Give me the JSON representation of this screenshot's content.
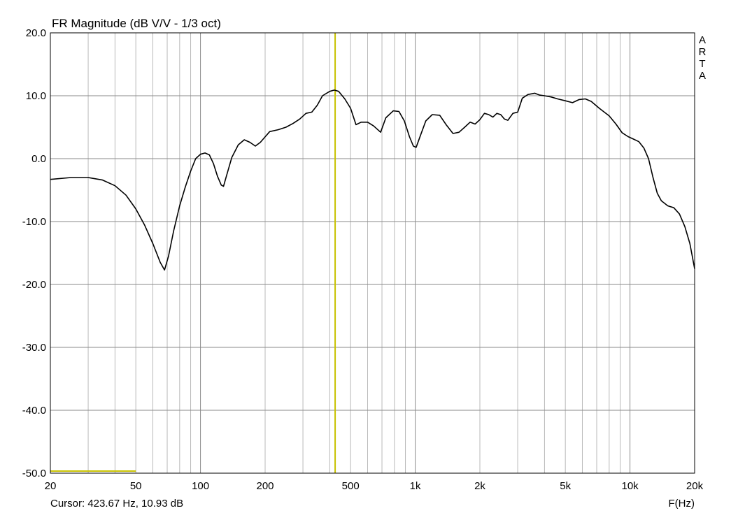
{
  "chart_data": {
    "type": "line",
    "title": "FR Magnitude (dB V/V - 1/3 oct)",
    "xlabel": "F(Hz)",
    "ylabel": "",
    "x_scale": "log",
    "xlim": [
      20,
      20000
    ],
    "ylim": [
      -50,
      20
    ],
    "grid": true,
    "watermark": "ARTA",
    "x_ticks": [
      "20",
      "50",
      "100",
      "200",
      "500",
      "1k",
      "2k",
      "5k",
      "10k",
      "20k"
    ],
    "y_ticks": [
      "20.0",
      "10.0",
      "0.0",
      "-10.0",
      "-20.0",
      "-30.0",
      "-40.0",
      "-50.0"
    ],
    "cursor": {
      "freq_hz": 423.67,
      "level_db": 10.93,
      "label": "Cursor: 423.67 Hz, 10.93 dB"
    },
    "series": [
      {
        "points": [
          [
            20,
            -3.3
          ],
          [
            25,
            -3.0
          ],
          [
            30,
            -3.0
          ],
          [
            35,
            -3.4
          ],
          [
            40,
            -4.3
          ],
          [
            45,
            -5.8
          ],
          [
            50,
            -8.0
          ],
          [
            55,
            -10.6
          ],
          [
            60,
            -13.5
          ],
          [
            65,
            -16.5
          ],
          [
            68,
            -17.7
          ],
          [
            71,
            -15.5
          ],
          [
            75,
            -11.5
          ],
          [
            80,
            -7.5
          ],
          [
            85,
            -4.5
          ],
          [
            90,
            -2.0
          ],
          [
            95,
            0.0
          ],
          [
            100,
            0.7
          ],
          [
            105,
            0.9
          ],
          [
            110,
            0.6
          ],
          [
            115,
            -0.8
          ],
          [
            120,
            -2.8
          ],
          [
            125,
            -4.2
          ],
          [
            128,
            -4.4
          ],
          [
            132,
            -2.8
          ],
          [
            140,
            0.2
          ],
          [
            150,
            2.2
          ],
          [
            160,
            3.0
          ],
          [
            170,
            2.6
          ],
          [
            180,
            2.0
          ],
          [
            190,
            2.6
          ],
          [
            210,
            4.3
          ],
          [
            230,
            4.6
          ],
          [
            250,
            5.0
          ],
          [
            270,
            5.6
          ],
          [
            290,
            6.3
          ],
          [
            310,
            7.2
          ],
          [
            330,
            7.4
          ],
          [
            350,
            8.5
          ],
          [
            370,
            10.0
          ],
          [
            400,
            10.7
          ],
          [
            420,
            10.9
          ],
          [
            440,
            10.7
          ],
          [
            470,
            9.5
          ],
          [
            500,
            8.0
          ],
          [
            530,
            5.4
          ],
          [
            560,
            5.8
          ],
          [
            600,
            5.8
          ],
          [
            640,
            5.2
          ],
          [
            690,
            4.2
          ],
          [
            730,
            6.5
          ],
          [
            790,
            7.6
          ],
          [
            840,
            7.5
          ],
          [
            890,
            6.0
          ],
          [
            940,
            3.5
          ],
          [
            980,
            2.0
          ],
          [
            1010,
            1.8
          ],
          [
            1060,
            3.8
          ],
          [
            1120,
            6.0
          ],
          [
            1200,
            7.0
          ],
          [
            1300,
            6.9
          ],
          [
            1400,
            5.3
          ],
          [
            1500,
            4.0
          ],
          [
            1600,
            4.2
          ],
          [
            1700,
            5.0
          ],
          [
            1800,
            5.8
          ],
          [
            1900,
            5.5
          ],
          [
            2000,
            6.2
          ],
          [
            2100,
            7.2
          ],
          [
            2200,
            7.0
          ],
          [
            2300,
            6.6
          ],
          [
            2400,
            7.2
          ],
          [
            2500,
            7.0
          ],
          [
            2600,
            6.3
          ],
          [
            2700,
            6.1
          ],
          [
            2850,
            7.2
          ],
          [
            3000,
            7.4
          ],
          [
            3150,
            9.6
          ],
          [
            3350,
            10.2
          ],
          [
            3600,
            10.4
          ],
          [
            3800,
            10.1
          ],
          [
            4000,
            10.0
          ],
          [
            4300,
            9.8
          ],
          [
            4600,
            9.5
          ],
          [
            5000,
            9.2
          ],
          [
            5400,
            8.9
          ],
          [
            5800,
            9.4
          ],
          [
            6200,
            9.5
          ],
          [
            6600,
            9.1
          ],
          [
            7200,
            8.0
          ],
          [
            8000,
            6.8
          ],
          [
            8600,
            5.5
          ],
          [
            9200,
            4.1
          ],
          [
            9800,
            3.5
          ],
          [
            10400,
            3.1
          ],
          [
            11000,
            2.7
          ],
          [
            11600,
            1.7
          ],
          [
            12200,
            0.0
          ],
          [
            12800,
            -3.0
          ],
          [
            13400,
            -5.5
          ],
          [
            14000,
            -6.7
          ],
          [
            15000,
            -7.5
          ],
          [
            16000,
            -7.8
          ],
          [
            17000,
            -8.8
          ],
          [
            18000,
            -10.8
          ],
          [
            19000,
            -13.5
          ],
          [
            20000,
            -17.5
          ]
        ]
      }
    ],
    "colors": {
      "background": "#ffffff",
      "grid": "#8a8a8a",
      "minor_grid": "#b8b8b8",
      "curve": "#000000",
      "cursor": "#c8c200",
      "frame": "#000000"
    }
  }
}
